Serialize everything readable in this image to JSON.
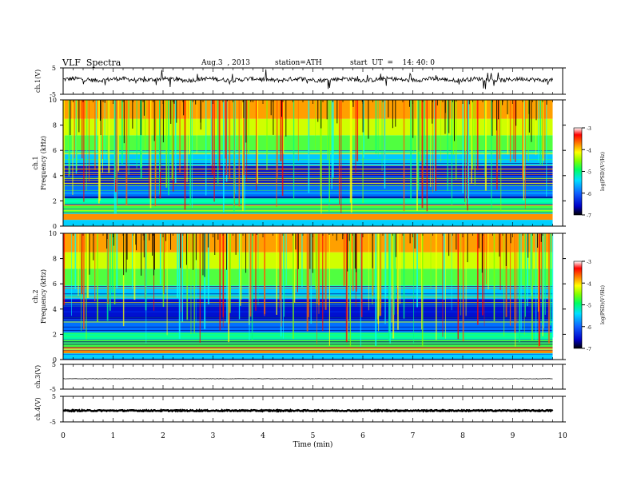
{
  "header": {
    "title": "VLF  Spectra",
    "date": "Aug.3  , 2013",
    "station": "station=ATH",
    "start": "start  UT  =    14: 40: 0"
  },
  "chart_data": [
    {
      "type": "line",
      "id": "ch1-waveform",
      "ylabel": "ch.1(V)",
      "ylim": [
        -5,
        5
      ],
      "yticks": [
        "5",
        "-5"
      ],
      "xlim": [
        0,
        10
      ]
    },
    {
      "type": "heatmap",
      "id": "ch1-spectrogram",
      "ylabel": "ch.1\nFrequency  (kHz)",
      "ylabel_lines": [
        "ch.1",
        "Frequency  (kHz)"
      ],
      "ylim": [
        0,
        10
      ],
      "yticks": [
        "0",
        "2",
        "4",
        "6",
        "8",
        "10"
      ],
      "colorbar": {
        "label": "log(PSD)(V²/Hz)",
        "range": [
          -7,
          -3
        ],
        "ticks": [
          "-3",
          "-4",
          "-5",
          "-6",
          "-7"
        ]
      }
    },
    {
      "type": "heatmap",
      "id": "ch2-spectrogram",
      "ylabel_lines": [
        "ch.2",
        "Frequency  (kHz)"
      ],
      "ylim": [
        0,
        10
      ],
      "yticks": [
        "0",
        "2",
        "4",
        "6",
        "8",
        "10"
      ],
      "colorbar": {
        "label": "log(PSD)(V²/Hz)",
        "range": [
          -7,
          -3
        ],
        "ticks": [
          "-3",
          "-4",
          "-5",
          "-6",
          "-7"
        ]
      }
    },
    {
      "type": "line",
      "id": "ch3-waveform",
      "ylabel": "ch.3(V)",
      "ylim": [
        -5,
        5
      ],
      "yticks": [
        "5",
        "-5"
      ]
    },
    {
      "type": "line",
      "id": "ch4-waveform",
      "ylabel": "ch.4(V)",
      "ylim": [
        -5,
        5
      ],
      "yticks": [
        "5",
        "-5"
      ]
    }
  ],
  "xaxis": {
    "label": "Time  (min)",
    "range": [
      0,
      10
    ],
    "ticks": [
      "0",
      "1",
      "2",
      "3",
      "4",
      "5",
      "6",
      "7",
      "8",
      "9",
      "10"
    ]
  },
  "colors": {
    "scale": [
      "#000000",
      "#0000c8",
      "#1060ff",
      "#00e0ff",
      "#00ff60",
      "#80ff00",
      "#ffff00",
      "#ff8000",
      "#ff0000",
      "#ffffff"
    ]
  }
}
